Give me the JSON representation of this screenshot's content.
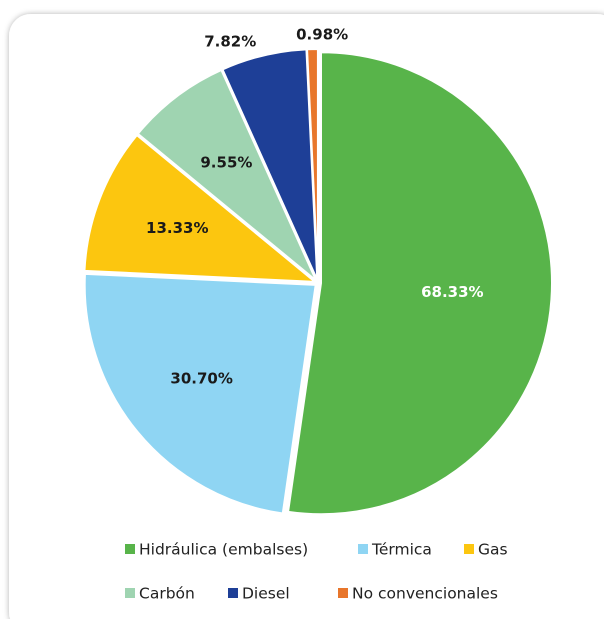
{
  "chart_data": {
    "type": "pie",
    "categories": [
      "Hidráulica (embalses)",
      "Térmica",
      "Gas",
      "Carbón",
      "Diesel",
      "No convencionales"
    ],
    "values": [
      68.33,
      30.7,
      13.33,
      9.55,
      7.82,
      0.98
    ],
    "value_labels": [
      "68.33%",
      "30.70%",
      "13.33%",
      "9.55%",
      "7.82%",
      "0.98%"
    ],
    "colors": [
      "#58b44a",
      "#8fd5f3",
      "#fcc60f",
      "#9fd4b1",
      "#1e3f97",
      "#e8762b"
    ]
  }
}
